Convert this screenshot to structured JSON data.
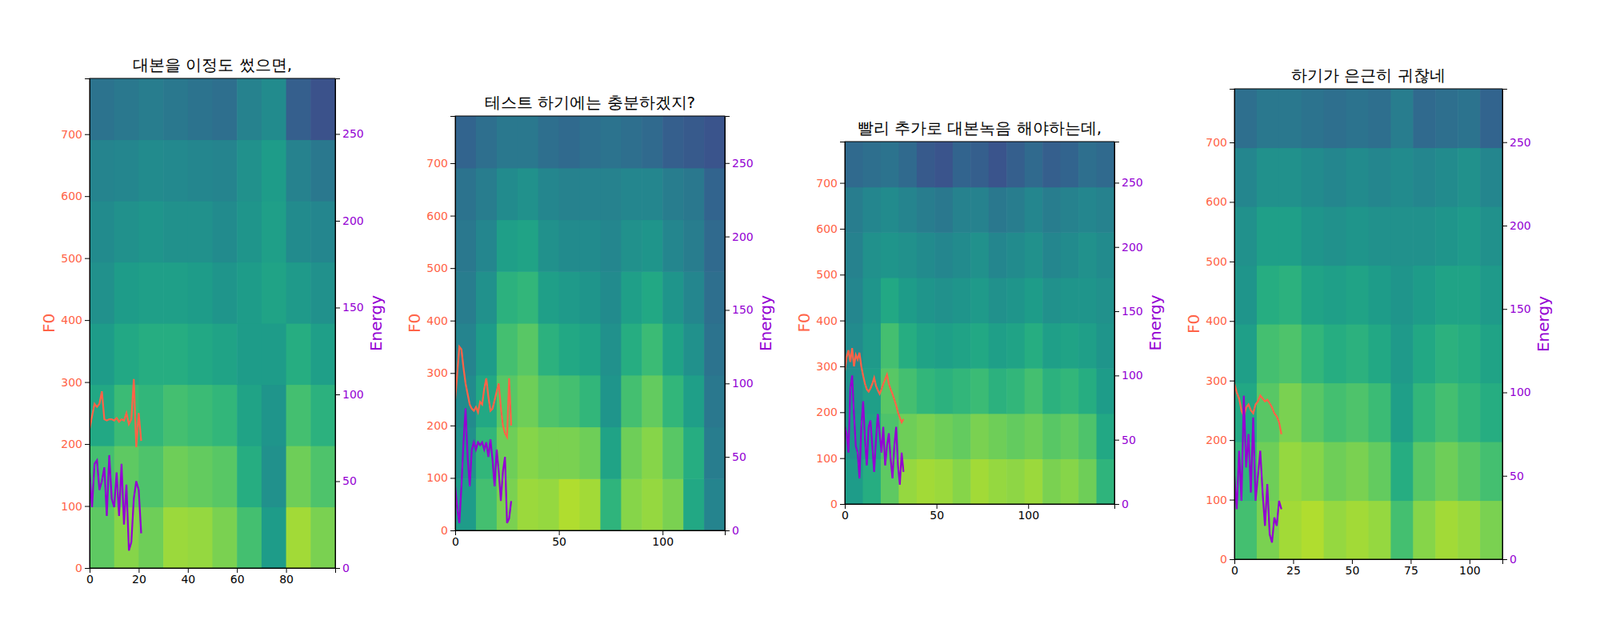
{
  "chart_data": [
    {
      "type": "heatmap",
      "title": "대본을 이정도 썼으면,",
      "ylabel": "F0",
      "y2label": "Energy",
      "xlim": [
        0,
        100
      ],
      "xticks": [
        0,
        20,
        40,
        60,
        80
      ],
      "ylim": [
        0,
        790
      ],
      "yticks": [
        0,
        100,
        200,
        300,
        400,
        500,
        600,
        700
      ],
      "y2lim": [
        0,
        282
      ],
      "y2ticks": [
        0,
        50,
        100,
        150,
        200,
        250
      ],
      "cells": [
        [
          0.75,
          0.82,
          0.78,
          0.85,
          0.84,
          0.8,
          0.7,
          0.55,
          0.86,
          0.8
        ],
        [
          0.7,
          0.75,
          0.72,
          0.78,
          0.76,
          0.74,
          0.62,
          0.5,
          0.78,
          0.72
        ],
        [
          0.6,
          0.68,
          0.66,
          0.7,
          0.68,
          0.66,
          0.58,
          0.52,
          0.7,
          0.64
        ],
        [
          0.55,
          0.6,
          0.62,
          0.62,
          0.6,
          0.58,
          0.55,
          0.55,
          0.62,
          0.56
        ],
        [
          0.5,
          0.55,
          0.56,
          0.56,
          0.55,
          0.52,
          0.55,
          0.58,
          0.54,
          0.5
        ],
        [
          0.48,
          0.5,
          0.52,
          0.5,
          0.5,
          0.48,
          0.52,
          0.56,
          0.48,
          0.46
        ],
        [
          0.45,
          0.46,
          0.48,
          0.47,
          0.46,
          0.45,
          0.5,
          0.55,
          0.44,
          0.4
        ],
        [
          0.38,
          0.4,
          0.42,
          0.4,
          0.38,
          0.36,
          0.44,
          0.48,
          0.3,
          0.25
        ]
      ],
      "x": [
        0,
        1,
        2,
        3,
        4,
        5,
        6,
        7,
        8,
        9,
        10,
        11,
        12,
        13,
        14,
        15,
        16,
        17,
        18,
        19,
        20,
        21
      ],
      "series": [
        {
          "color": "#ff6347",
          "values": [
            225,
            245,
            265,
            260,
            265,
            285,
            240,
            238,
            240,
            240,
            238,
            242,
            236,
            240,
            238,
            250,
            232,
            240,
            305,
            195,
            250,
            205
          ]
        },
        {
          "color": "#9400d3",
          "axis": "y2",
          "values": [
            55,
            35,
            60,
            62,
            45,
            50,
            58,
            30,
            65,
            40,
            35,
            55,
            30,
            60,
            25,
            48,
            10,
            15,
            40,
            50,
            45,
            20
          ]
        }
      ]
    },
    {
      "type": "heatmap",
      "title": "테스트 하기에는 충분하겠지?",
      "ylabel": "F0",
      "y2label": "Energy",
      "xlim": [
        0,
        130
      ],
      "xticks": [
        0,
        50,
        100
      ],
      "ylim": [
        0,
        790
      ],
      "yticks": [
        0,
        100,
        200,
        300,
        400,
        500,
        600,
        700
      ],
      "y2lim": [
        0,
        282
      ],
      "y2ticks": [
        0,
        50,
        100,
        150,
        200,
        250
      ],
      "cells": [
        [
          0.55,
          0.7,
          0.8,
          0.85,
          0.84,
          0.88,
          0.86,
          0.65,
          0.82,
          0.84,
          0.8,
          0.6,
          0.45
        ],
        [
          0.5,
          0.66,
          0.78,
          0.82,
          0.8,
          0.8,
          0.78,
          0.58,
          0.78,
          0.82,
          0.74,
          0.62,
          0.42
        ],
        [
          0.48,
          0.6,
          0.74,
          0.78,
          0.72,
          0.7,
          0.66,
          0.52,
          0.7,
          0.76,
          0.66,
          0.56,
          0.4
        ],
        [
          0.45,
          0.55,
          0.7,
          0.74,
          0.64,
          0.6,
          0.58,
          0.5,
          0.62,
          0.68,
          0.58,
          0.5,
          0.38
        ],
        [
          0.42,
          0.5,
          0.64,
          0.66,
          0.56,
          0.54,
          0.52,
          0.48,
          0.56,
          0.6,
          0.52,
          0.46,
          0.36
        ],
        [
          0.4,
          0.46,
          0.56,
          0.58,
          0.5,
          0.48,
          0.48,
          0.46,
          0.5,
          0.52,
          0.46,
          0.42,
          0.34
        ],
        [
          0.38,
          0.42,
          0.48,
          0.5,
          0.46,
          0.44,
          0.44,
          0.44,
          0.46,
          0.46,
          0.42,
          0.4,
          0.32
        ],
        [
          0.32,
          0.36,
          0.4,
          0.4,
          0.36,
          0.34,
          0.36,
          0.38,
          0.36,
          0.34,
          0.3,
          0.28,
          0.26
        ]
      ],
      "x": [
        0,
        1,
        2,
        3,
        4,
        5,
        6,
        7,
        8,
        9,
        10,
        11,
        12,
        13,
        14,
        15,
        16,
        17,
        18,
        19,
        20,
        21,
        22,
        23,
        24,
        25,
        26,
        27
      ],
      "series": [
        {
          "color": "#ff6347",
          "values": [
            250,
            300,
            350,
            345,
            310,
            280,
            260,
            240,
            232,
            228,
            235,
            225,
            245,
            240,
            270,
            290,
            255,
            228,
            232,
            248,
            265,
            280,
            235,
            200,
            185,
            178,
            290,
            200
          ]
        },
        {
          "color": "#9400d3",
          "axis": "y2",
          "values": [
            30,
            15,
            5,
            30,
            60,
            83,
            50,
            30,
            55,
            60,
            55,
            60,
            58,
            60,
            55,
            60,
            50,
            62,
            48,
            30,
            55,
            40,
            20,
            40,
            50,
            5,
            8,
            20
          ]
        }
      ]
    },
    {
      "type": "heatmap",
      "title": "빨리 추가로 대본녹음 해야하는데,",
      "ylabel": "F0",
      "y2label": "Energy",
      "xlim": [
        0,
        147
      ],
      "xticks": [
        0,
        50,
        100
      ],
      "ylim": [
        0,
        790
      ],
      "yticks": [
        0,
        100,
        200,
        300,
        400,
        500,
        600,
        700
      ],
      "y2lim": [
        0,
        282
      ],
      "y2ticks": [
        0,
        50,
        100,
        150,
        200,
        250
      ],
      "cells": [
        [
          0.55,
          0.62,
          0.75,
          0.84,
          0.86,
          0.85,
          0.82,
          0.86,
          0.84,
          0.83,
          0.85,
          0.8,
          0.82,
          0.78,
          0.65
        ],
        [
          0.52,
          0.58,
          0.72,
          0.78,
          0.8,
          0.78,
          0.76,
          0.8,
          0.78,
          0.76,
          0.78,
          0.74,
          0.76,
          0.72,
          0.6
        ],
        [
          0.5,
          0.56,
          0.74,
          0.7,
          0.66,
          0.64,
          0.66,
          0.68,
          0.64,
          0.66,
          0.7,
          0.64,
          0.66,
          0.62,
          0.55
        ],
        [
          0.48,
          0.54,
          0.7,
          0.62,
          0.58,
          0.56,
          0.58,
          0.6,
          0.56,
          0.58,
          0.62,
          0.56,
          0.58,
          0.56,
          0.52
        ],
        [
          0.46,
          0.52,
          0.6,
          0.55,
          0.52,
          0.5,
          0.52,
          0.54,
          0.5,
          0.52,
          0.55,
          0.5,
          0.52,
          0.52,
          0.5
        ],
        [
          0.44,
          0.5,
          0.52,
          0.5,
          0.48,
          0.46,
          0.48,
          0.5,
          0.46,
          0.48,
          0.5,
          0.46,
          0.48,
          0.5,
          0.48
        ],
        [
          0.42,
          0.46,
          0.48,
          0.45,
          0.42,
          0.4,
          0.44,
          0.44,
          0.4,
          0.42,
          0.46,
          0.42,
          0.44,
          0.46,
          0.44
        ],
        [
          0.34,
          0.36,
          0.38,
          0.34,
          0.28,
          0.26,
          0.32,
          0.3,
          0.26,
          0.3,
          0.34,
          0.3,
          0.32,
          0.36,
          0.34
        ]
      ],
      "x": [
        0,
        1,
        2,
        3,
        4,
        5,
        6,
        7,
        8,
        9,
        10,
        11,
        12,
        13,
        14,
        15,
        16,
        17,
        18,
        19,
        20,
        21,
        22,
        23,
        24,
        25,
        26,
        27,
        28,
        29,
        30,
        31,
        32
      ],
      "series": [
        {
          "color": "#ff6347",
          "values": [
            290,
            320,
            335,
            310,
            340,
            300,
            325,
            315,
            330,
            300,
            280,
            262,
            250,
            245,
            252,
            262,
            275,
            258,
            248,
            240,
            250,
            262,
            272,
            282,
            262,
            250,
            240,
            228,
            215,
            200,
            188,
            178,
            185
          ]
        },
        {
          "color": "#9400d3",
          "axis": "y2",
          "values": [
            60,
            55,
            40,
            90,
            100,
            70,
            45,
            40,
            20,
            60,
            80,
            50,
            30,
            60,
            65,
            45,
            25,
            50,
            70,
            55,
            40,
            60,
            30,
            45,
            55,
            35,
            20,
            45,
            60,
            30,
            15,
            40,
            25
          ]
        }
      ]
    },
    {
      "type": "heatmap",
      "title": "하기가 은근히 귀찮네",
      "ylabel": "F0",
      "y2label": "Energy",
      "xlim": [
        0,
        114
      ],
      "xticks": [
        0,
        25,
        50,
        75,
        100
      ],
      "ylim": [
        0,
        790
      ],
      "yticks": [
        0,
        100,
        200,
        300,
        400,
        500,
        600,
        700
      ],
      "y2lim": [
        0,
        282
      ],
      "y2ticks": [
        0,
        50,
        100,
        150,
        200,
        250
      ],
      "cells": [
        [
          0.7,
          0.8,
          0.86,
          0.88,
          0.84,
          0.86,
          0.84,
          0.7,
          0.82,
          0.86,
          0.84,
          0.8
        ],
        [
          0.66,
          0.78,
          0.84,
          0.82,
          0.78,
          0.8,
          0.76,
          0.62,
          0.74,
          0.78,
          0.74,
          0.7
        ],
        [
          0.6,
          0.74,
          0.8,
          0.74,
          0.7,
          0.72,
          0.68,
          0.56,
          0.66,
          0.7,
          0.66,
          0.62
        ],
        [
          0.56,
          0.7,
          0.72,
          0.66,
          0.62,
          0.64,
          0.6,
          0.54,
          0.6,
          0.64,
          0.62,
          0.58
        ],
        [
          0.52,
          0.62,
          0.64,
          0.58,
          0.56,
          0.58,
          0.55,
          0.52,
          0.55,
          0.58,
          0.58,
          0.54
        ],
        [
          0.5,
          0.56,
          0.56,
          0.52,
          0.5,
          0.52,
          0.5,
          0.5,
          0.5,
          0.52,
          0.54,
          0.5
        ],
        [
          0.46,
          0.5,
          0.5,
          0.48,
          0.46,
          0.48,
          0.46,
          0.48,
          0.46,
          0.48,
          0.5,
          0.46
        ],
        [
          0.36,
          0.4,
          0.4,
          0.38,
          0.36,
          0.38,
          0.36,
          0.42,
          0.34,
          0.36,
          0.38,
          0.32
        ]
      ],
      "x": [
        0,
        1,
        2,
        3,
        4,
        5,
        6,
        7,
        8,
        9,
        10,
        11,
        12,
        13,
        14,
        15,
        16,
        17,
        18,
        19,
        20
      ],
      "series": [
        {
          "color": "#ff6347",
          "values": [
            295,
            280,
            270,
            250,
            240,
            255,
            260,
            250,
            245,
            260,
            265,
            275,
            270,
            265,
            268,
            262,
            255,
            245,
            240,
            230,
            210
          ]
        },
        {
          "color": "#9400d3",
          "axis": "y2",
          "values": [
            50,
            30,
            65,
            35,
            98,
            55,
            75,
            40,
            85,
            35,
            50,
            65,
            40,
            20,
            45,
            15,
            10,
            25,
            20,
            35,
            30
          ]
        }
      ]
    }
  ]
}
